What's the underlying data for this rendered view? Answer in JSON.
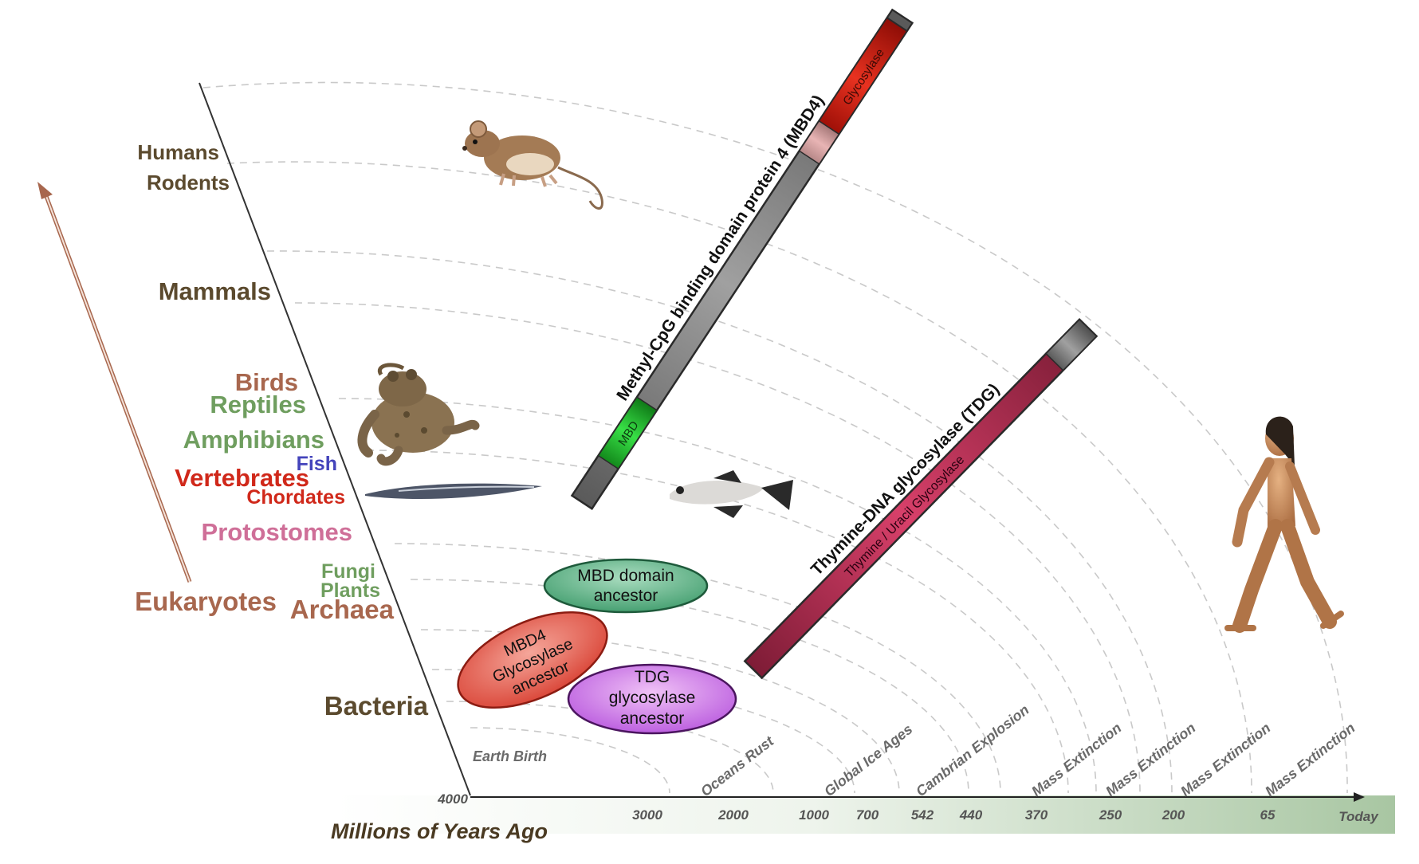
{
  "colors": {
    "lineage_dark": "#5b4a2e",
    "lineage_brown": "#a8674e",
    "lineage_green": "#6f9e5f",
    "lineage_red": "#d0281a",
    "lineage_blue": "#4444bb",
    "lineage_pink": "#cf6f98",
    "mbd4_bar": "#7b7b7b",
    "tdg_bar": "#c0335a",
    "glycosylase": "#d42010",
    "mbd": "#2fc43a"
  },
  "lineages": {
    "humans": "Humans",
    "rodents": "Rodents",
    "mammals": "Mammals",
    "birds": "Birds",
    "reptiles": "Reptiles",
    "amphibians": "Amphibians",
    "fish": "Fish",
    "vertebrates": "Vertebrates",
    "chordates": "Chordates",
    "protostomes": "Protostomes",
    "fungi": "Fungi",
    "plants": "Plants",
    "eukaryotes": "Eukaryotes",
    "archaea": "Archaea",
    "bacteria": "Bacteria"
  },
  "mbd4_bar": {
    "title": "Methyl-CpG binding domain protein 4 (MBD4)",
    "glycosylase_label": "Glycosylase",
    "mbd_label": "MBD"
  },
  "tdg_bar": {
    "title": "Thymine-DNA glycosylase (TDG)",
    "inner_label": "Thymine / Uracil Glycosylase"
  },
  "ancestors": {
    "mbd_domain": [
      "MBD domain",
      "ancestor"
    ],
    "mbd4_glycosylase": [
      "MBD4",
      "Glycosylase",
      "ancestor"
    ],
    "tdg_glycosylase": [
      "TDG",
      "glycosylase",
      "ancestor"
    ]
  },
  "events": {
    "earth_birth": "Earth Birth",
    "oceans_rust": "Oceans Rust",
    "global_ice_ages": "Global Ice Ages",
    "cambrian_explosion": "Cambrian Explosion",
    "mass_extinction": "Mass Extinction"
  },
  "timeline": {
    "axis_title": "Millions of Years Ago",
    "start": "4000",
    "ticks": [
      "3000",
      "2000",
      "1000",
      "700",
      "542",
      "440",
      "370",
      "250",
      "200",
      "65",
      "Today"
    ]
  },
  "icons": {
    "mouse": "mouse-image",
    "frog": "frog-image",
    "lamprey": "lamprey-image",
    "fish": "fish-image",
    "human": "human-image",
    "arrow": "evolution-arrow-icon"
  }
}
